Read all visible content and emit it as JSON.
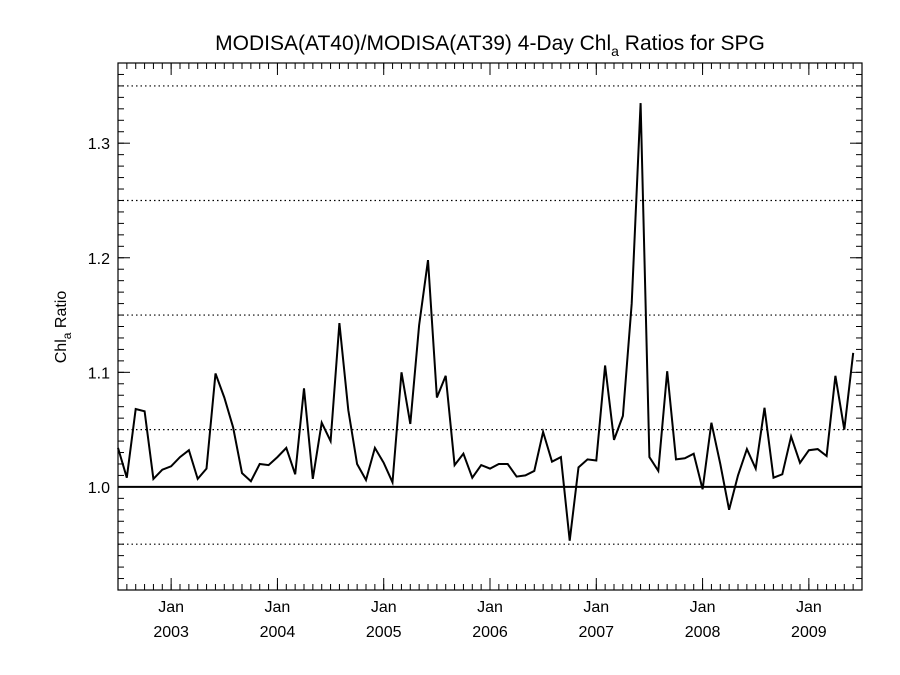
{
  "chart_data": {
    "type": "line",
    "title": "MODISA(AT40)/MODISA(AT39) 4-Day Chl",
    "title_sub": "a",
    "title_rest": " Ratios for SPG",
    "ylabel": "Chl",
    "ylabel_sub": "a",
    "ylabel_rest": " Ratio",
    "xlim": [
      2002.5,
      2009.5
    ],
    "ylim": [
      0.91,
      1.37
    ],
    "yticks": [
      {
        "value": 1.0,
        "label": "1.0"
      },
      {
        "value": 1.1,
        "label": "1.1"
      },
      {
        "value": 1.2,
        "label": "1.2"
      },
      {
        "value": 1.3,
        "label": "1.3"
      }
    ],
    "ygrid_dotted": [
      0.95,
      1.05,
      1.15,
      1.25,
      1.35
    ],
    "reference_line": 1.0,
    "xticks": [
      {
        "value": 2003,
        "month": "Jan",
        "year": "2003"
      },
      {
        "value": 2004,
        "month": "Jan",
        "year": "2004"
      },
      {
        "value": 2005,
        "month": "Jan",
        "year": "2005"
      },
      {
        "value": 2006,
        "month": "Jan",
        "year": "2006"
      },
      {
        "value": 2007,
        "month": "Jan",
        "year": "2007"
      },
      {
        "value": 2008,
        "month": "Jan",
        "year": "2008"
      },
      {
        "value": 2009,
        "month": "Jan",
        "year": "2009"
      }
    ],
    "series": [
      {
        "points": [
          [
            2002.5,
            1.034
          ],
          [
            2002.583,
            1.008
          ],
          [
            2002.667,
            1.068
          ],
          [
            2002.75,
            1.066
          ],
          [
            2002.833,
            1.007
          ],
          [
            2002.917,
            1.015
          ],
          [
            2003.0,
            1.018
          ],
          [
            2003.083,
            1.026
          ],
          [
            2003.167,
            1.032
          ],
          [
            2003.25,
            1.007
          ],
          [
            2003.333,
            1.016
          ],
          [
            2003.417,
            1.099
          ],
          [
            2003.5,
            1.078
          ],
          [
            2003.583,
            1.052
          ],
          [
            2003.667,
            1.012
          ],
          [
            2003.75,
            1.005
          ],
          [
            2003.833,
            1.02
          ],
          [
            2003.917,
            1.019
          ],
          [
            2004.0,
            1.026
          ],
          [
            2004.083,
            1.034
          ],
          [
            2004.167,
            1.011
          ],
          [
            2004.25,
            1.086
          ],
          [
            2004.333,
            1.007
          ],
          [
            2004.417,
            1.056
          ],
          [
            2004.5,
            1.04
          ],
          [
            2004.583,
            1.143
          ],
          [
            2004.667,
            1.067
          ],
          [
            2004.75,
            1.02
          ],
          [
            2004.833,
            1.006
          ],
          [
            2004.917,
            1.034
          ],
          [
            2005.0,
            1.021
          ],
          [
            2005.083,
            1.004
          ],
          [
            2005.167,
            1.1
          ],
          [
            2005.25,
            1.055
          ],
          [
            2005.333,
            1.141
          ],
          [
            2005.417,
            1.198
          ],
          [
            2005.5,
            1.078
          ],
          [
            2005.583,
            1.097
          ],
          [
            2005.667,
            1.019
          ],
          [
            2005.75,
            1.029
          ],
          [
            2005.833,
            1.008
          ],
          [
            2005.917,
            1.019
          ],
          [
            2006.0,
            1.016
          ],
          [
            2006.083,
            1.02
          ],
          [
            2006.167,
            1.02
          ],
          [
            2006.25,
            1.009
          ],
          [
            2006.333,
            1.01
          ],
          [
            2006.417,
            1.014
          ],
          [
            2006.5,
            1.048
          ],
          [
            2006.583,
            1.022
          ],
          [
            2006.667,
            1.026
          ],
          [
            2006.75,
            0.953
          ],
          [
            2006.833,
            1.017
          ],
          [
            2006.917,
            1.024
          ],
          [
            2007.0,
            1.023
          ],
          [
            2007.083,
            1.106
          ],
          [
            2007.167,
            1.041
          ],
          [
            2007.25,
            1.062
          ],
          [
            2007.333,
            1.16
          ],
          [
            2007.417,
            1.335
          ],
          [
            2007.5,
            1.026
          ],
          [
            2007.583,
            1.014
          ],
          [
            2007.667,
            1.101
          ],
          [
            2007.75,
            1.024
          ],
          [
            2007.833,
            1.025
          ],
          [
            2007.917,
            1.029
          ],
          [
            2008.0,
            0.998
          ],
          [
            2008.083,
            1.056
          ],
          [
            2008.167,
            1.02
          ],
          [
            2008.25,
            0.98
          ],
          [
            2008.333,
            1.01
          ],
          [
            2008.417,
            1.033
          ],
          [
            2008.5,
            1.016
          ],
          [
            2008.583,
            1.069
          ],
          [
            2008.667,
            1.008
          ],
          [
            2008.75,
            1.011
          ],
          [
            2008.833,
            1.044
          ],
          [
            2008.917,
            1.021
          ],
          [
            2009.0,
            1.032
          ],
          [
            2009.083,
            1.033
          ],
          [
            2009.167,
            1.027
          ],
          [
            2009.25,
            1.097
          ],
          [
            2009.333,
            1.05
          ],
          [
            2009.417,
            1.117
          ]
        ]
      }
    ]
  }
}
